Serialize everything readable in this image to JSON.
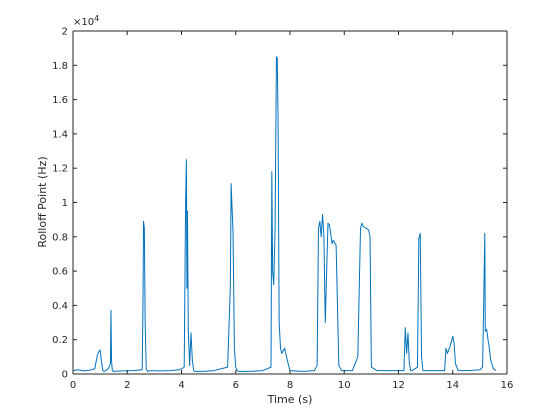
{
  "chart_data": {
    "type": "line",
    "title": "",
    "xlabel": "Time (s)",
    "ylabel": "Rolloff Point (Hz)",
    "xlim": [
      0,
      16
    ],
    "ylim": [
      0,
      20000
    ],
    "y_exponent_label": "×10",
    "y_exponent_power": "4",
    "x_ticks": [
      0,
      2,
      4,
      6,
      8,
      10,
      12,
      14,
      16
    ],
    "x_tick_labels": [
      "0",
      "2",
      "4",
      "6",
      "8",
      "10",
      "12",
      "14",
      "16"
    ],
    "y_ticks": [
      0,
      2000,
      4000,
      6000,
      8000,
      10000,
      12000,
      14000,
      16000,
      18000,
      20000
    ],
    "y_tick_labels": [
      "0",
      "0.2",
      "0.4",
      "0.6",
      "0.8",
      "1",
      "1.2",
      "1.4",
      "1.6",
      "1.8",
      "2"
    ],
    "grid": false,
    "legend": "none",
    "line_color": "#0072bd",
    "series": [
      {
        "x": [
          0,
          0.2,
          0.4,
          0.6,
          0.8,
          0.85,
          0.9,
          0.95,
          1.0,
          1.05,
          1.1,
          1.15,
          1.2,
          1.3,
          1.38,
          1.4,
          1.42,
          1.45,
          1.5,
          1.8,
          2.2,
          2.55,
          2.58,
          2.6,
          2.63,
          2.66,
          2.7,
          2.75,
          2.85,
          3.2,
          3.6,
          3.9,
          4.0,
          4.1,
          4.15,
          4.18,
          4.2,
          4.22,
          4.25,
          4.3,
          4.35,
          4.4,
          4.45,
          4.5,
          4.8,
          5.2,
          5.7,
          5.8,
          5.83,
          5.86,
          5.9,
          5.95,
          6.0,
          6.05,
          6.1,
          6.5,
          7.0,
          7.3,
          7.33,
          7.36,
          7.4,
          7.45,
          7.5,
          7.53,
          7.56,
          7.6,
          7.65,
          7.7,
          7.8,
          7.9,
          8.0,
          8.5,
          8.9,
          9.0,
          9.05,
          9.1,
          9.15,
          9.2,
          9.25,
          9.3,
          9.4,
          9.45,
          9.5,
          9.55,
          9.6,
          9.7,
          9.75,
          9.8,
          9.9,
          10.3,
          10.5,
          10.6,
          10.65,
          10.7,
          10.8,
          10.9,
          10.95,
          11.0,
          11.2,
          11.8,
          12.2,
          12.25,
          12.3,
          12.35,
          12.4,
          12.45,
          12.5,
          12.7,
          12.75,
          12.8,
          12.85,
          12.9,
          13.2,
          13.7,
          13.75,
          13.8,
          13.9,
          14.0,
          14.05,
          14.1,
          14.2,
          14.6,
          15.0,
          15.1,
          15.15,
          15.18,
          15.2,
          15.25,
          15.3,
          15.35,
          15.4,
          15.5,
          15.6
        ],
        "y": [
          200,
          250,
          180,
          220,
          300,
          700,
          1100,
          1300,
          1400,
          700,
          200,
          150,
          200,
          300,
          600,
          3700,
          800,
          200,
          150,
          180,
          200,
          250,
          4000,
          8900,
          8500,
          3000,
          300,
          150,
          200,
          180,
          200,
          250,
          300,
          400,
          9800,
          12500,
          5000,
          9500,
          2500,
          500,
          2400,
          800,
          200,
          150,
          150,
          200,
          400,
          5000,
          11100,
          9800,
          8300,
          1500,
          400,
          200,
          150,
          150,
          200,
          400,
          11800,
          6000,
          5200,
          8500,
          18500,
          18400,
          15000,
          3000,
          1500,
          1200,
          1500,
          800,
          200,
          150,
          200,
          500,
          8500,
          8900,
          8000,
          9300,
          8000,
          3000,
          8800,
          8700,
          8200,
          7600,
          7800,
          7500,
          4000,
          500,
          200,
          200,
          1000,
          8500,
          8800,
          8600,
          8500,
          8400,
          8000,
          400,
          200,
          200,
          200,
          2700,
          1200,
          2400,
          600,
          200,
          200,
          400,
          7900,
          8200,
          1000,
          200,
          200,
          200,
          1500,
          1200,
          1600,
          2200,
          1800,
          600,
          200,
          200,
          250,
          400,
          5000,
          8200,
          2500,
          2600,
          2000,
          1500,
          800,
          300,
          200
        ]
      }
    ]
  }
}
